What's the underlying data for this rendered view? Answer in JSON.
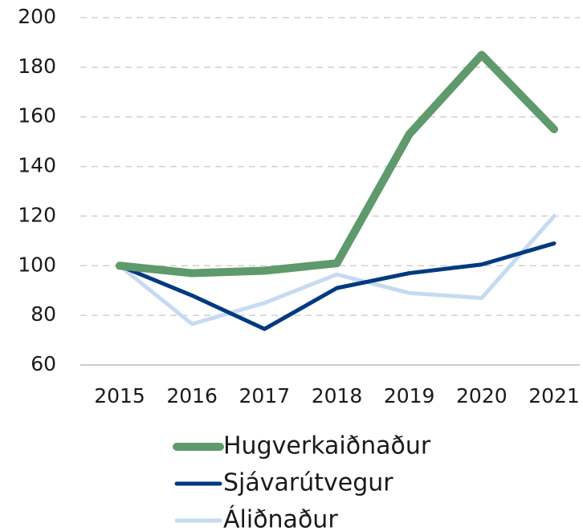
{
  "chart_data": {
    "type": "line",
    "categories": [
      "2015",
      "2016",
      "2017",
      "2018",
      "2019",
      "2020",
      "2021"
    ],
    "series": [
      {
        "name": "Hugverkaiðnaður",
        "color": "#5e9a6b",
        "width": 10,
        "values": [
          100,
          97,
          98,
          101,
          153,
          185,
          155
        ]
      },
      {
        "name": "Sjávarútvegur",
        "color": "#003a80",
        "width": 5,
        "values": [
          100,
          88,
          74.5,
          91,
          97,
          100.5,
          109
        ]
      },
      {
        "name": "Áliðnaður",
        "color": "#c6daf2",
        "width": 5,
        "values": [
          100,
          76.5,
          85,
          96.5,
          89,
          87,
          120
        ]
      }
    ],
    "ylim": [
      60,
      200
    ],
    "yticks": [
      60,
      80,
      100,
      120,
      140,
      160,
      180,
      200
    ],
    "grid": true,
    "legend": "bottom"
  }
}
